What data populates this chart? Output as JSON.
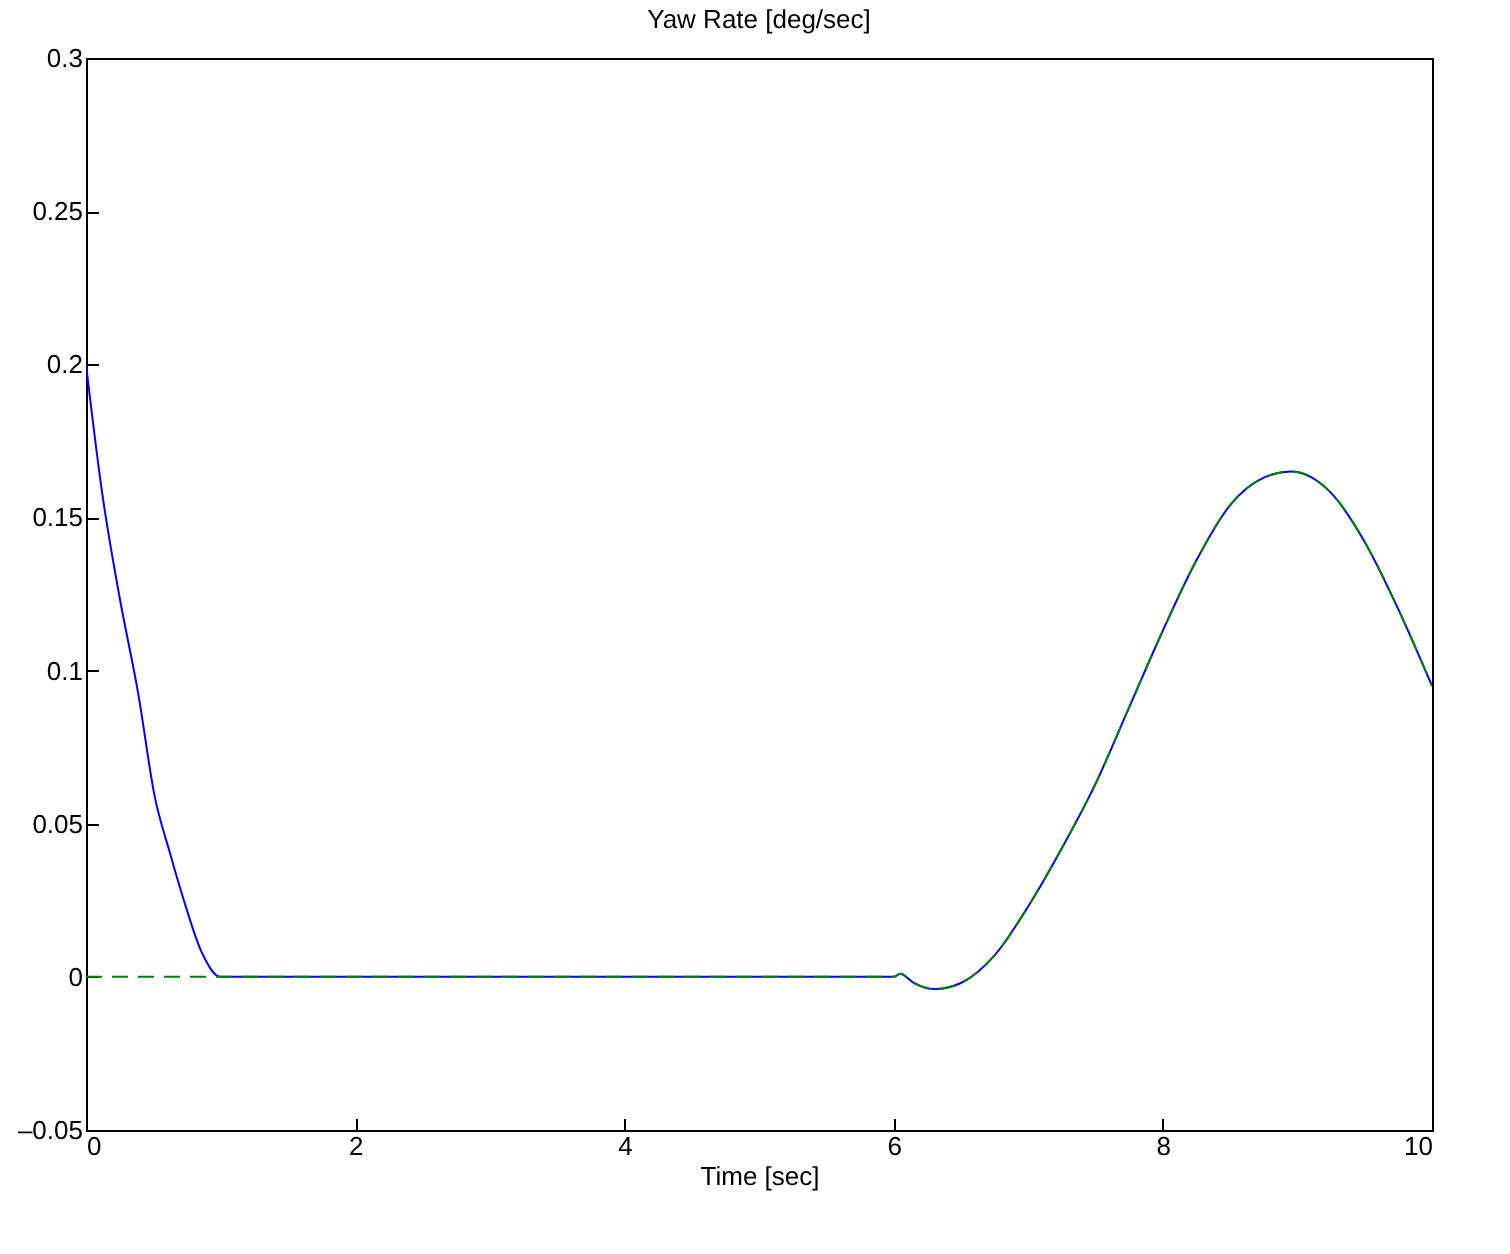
{
  "chart_data": {
    "type": "line",
    "title": "Yaw Rate [deg/sec]",
    "xlabel": "Time [sec]",
    "xlim": [
      0,
      10
    ],
    "xticks": [
      0,
      2,
      4,
      6,
      8,
      10
    ],
    "ylim": [
      -0.05,
      0.3
    ],
    "yticks": [
      {
        "value": -0.05,
        "label": "–0.05"
      },
      0,
      0.05,
      0.1,
      0.15,
      0.2,
      0.25,
      0.3
    ],
    "grid": false,
    "series": [
      {
        "color": "#0000ff",
        "line_style": "solid",
        "x": [
          0,
          0.12,
          0.245,
          0.39,
          0.51,
          0.62,
          0.72,
          0.86,
          1,
          2,
          3,
          4,
          5,
          6,
          6.05,
          6.15,
          6.3,
          6.5,
          6.75,
          7,
          7.25,
          7.5,
          7.75,
          8,
          8.25,
          8.5,
          8.75,
          8.95,
          9.25,
          9.5,
          9.75,
          10
        ],
        "values": [
          0.2,
          0.158,
          0.125,
          0.092,
          0.059,
          0.041,
          0.026,
          0.008,
          0,
          0,
          0,
          0,
          0,
          0,
          0.001,
          -0.002,
          -0.004,
          -0.002,
          0.007,
          0.023,
          0.042,
          0.063,
          0.088,
          0.113,
          0.136,
          0.154,
          0.163,
          0.165,
          0.158,
          0.142,
          0.12,
          0.095
        ]
      },
      {
        "color": "#008000",
        "line_style": "dashed",
        "x": [
          0,
          1,
          2,
          3,
          4,
          5,
          6,
          6.05,
          6.15,
          6.3,
          6.5,
          6.75,
          7,
          7.25,
          7.5,
          7.75,
          8,
          8.25,
          8.5,
          8.75,
          8.95,
          9.25,
          9.5,
          9.75,
          10
        ],
        "values": [
          0,
          0,
          0,
          0,
          0,
          0,
          0,
          0.001,
          -0.002,
          -0.004,
          -0.002,
          0.007,
          0.023,
          0.042,
          0.063,
          0.088,
          0.113,
          0.136,
          0.154,
          0.163,
          0.165,
          0.158,
          0.142,
          0.12,
          0.095
        ]
      }
    ]
  }
}
